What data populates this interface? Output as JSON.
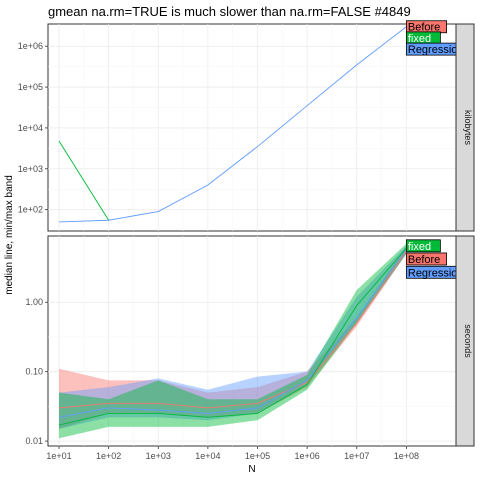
{
  "chart_data": {
    "type": "line",
    "title": "gmean na.rm=TRUE is much slower than na.rm=FALSE #4849",
    "xlabel": "N",
    "ylabel": "median line, min/max band",
    "x_scale": "log10",
    "x_ticks": [
      "1e+01",
      "1e+02",
      "1e+03",
      "1e+04",
      "1e+05",
      "1e+06",
      "1e+07",
      "1e+08"
    ],
    "x_tick_values": [
      10,
      100,
      1000,
      10000,
      100000,
      1000000,
      10000000,
      100000000
    ],
    "xlim": [
      6,
      1000000000
    ],
    "series_colors": {
      "Before": "#F8766D",
      "fixed": "#00BA38",
      "Regression": "#619CFF"
    },
    "panels": [
      {
        "strip": "kilobytes",
        "y_scale": "log10",
        "ylim": [
          30,
          3500000
        ],
        "y_ticks": [
          "1e+02",
          "1e+03",
          "1e+04",
          "1e+05",
          "1e+06"
        ],
        "y_tick_values": [
          100,
          1000,
          10000,
          100000,
          1000000
        ],
        "series": [
          {
            "name": "Regression",
            "x": [
              10,
              100,
              1000,
              10000,
              100000,
              1000000,
              10000000,
              100000000
            ],
            "median": [
              50,
              55,
              90,
              400,
              3500,
              35000,
              350000,
              3000000
            ]
          },
          {
            "name": "fixed",
            "x": [
              10,
              100
            ],
            "median": [
              4800,
              55
            ]
          }
        ],
        "labels": [
          {
            "text": "Before",
            "series": "Before",
            "x": 100000000,
            "y": 3000000
          },
          {
            "text": "fixed",
            "series": "fixed",
            "x": 100000000,
            "y": 1600000
          },
          {
            "text": "Regression",
            "series": "Regression",
            "x": 100000000,
            "y": 850000
          }
        ]
      },
      {
        "strip": "seconds",
        "y_scale": "log10",
        "ylim": [
          0.0085,
          9
        ],
        "y_ticks": [
          "0.01",
          "0.10",
          "1.00"
        ],
        "y_tick_values": [
          0.01,
          0.1,
          1
        ],
        "series": [
          {
            "name": "Before",
            "x": [
              10,
              100,
              1000,
              10000,
              100000,
              1000000,
              10000000,
              100000000
            ],
            "median": [
              0.03,
              0.035,
              0.035,
              0.03,
              0.035,
              0.07,
              0.5,
              5.5
            ],
            "min": [
              0.015,
              0.025,
              0.025,
              0.022,
              0.025,
              0.06,
              0.45,
              5.0
            ],
            "max": [
              0.11,
              0.075,
              0.075,
              0.05,
              0.06,
              0.1,
              0.6,
              6.5
            ]
          },
          {
            "name": "Regression",
            "x": [
              10,
              100,
              1000,
              10000,
              100000,
              1000000,
              10000000,
              100000000
            ],
            "median": [
              0.022,
              0.03,
              0.028,
              0.025,
              0.03,
              0.075,
              0.6,
              5.8
            ],
            "min": [
              0.015,
              0.022,
              0.022,
              0.02,
              0.025,
              0.065,
              0.5,
              5.0
            ],
            "max": [
              0.05,
              0.06,
              0.08,
              0.055,
              0.085,
              0.1,
              1.2,
              6.5
            ]
          },
          {
            "name": "fixed",
            "x": [
              10,
              100,
              1000,
              10000,
              100000,
              1000000,
              10000000,
              100000000
            ],
            "median": [
              0.017,
              0.025,
              0.025,
              0.022,
              0.025,
              0.065,
              0.9,
              6.0
            ],
            "min": [
              0.011,
              0.016,
              0.016,
              0.016,
              0.02,
              0.055,
              0.5,
              5.0
            ],
            "max": [
              0.05,
              0.04,
              0.075,
              0.04,
              0.04,
              0.09,
              1.5,
              7.0
            ]
          }
        ],
        "labels": [
          {
            "text": "fixed",
            "series": "fixed",
            "x": 100000000,
            "y": 6.5
          },
          {
            "text": "Before",
            "series": "Before",
            "x": 100000000,
            "y": 4.2
          },
          {
            "text": "Regression",
            "series": "Regression",
            "x": 100000000,
            "y": 2.7
          }
        ]
      }
    ]
  }
}
